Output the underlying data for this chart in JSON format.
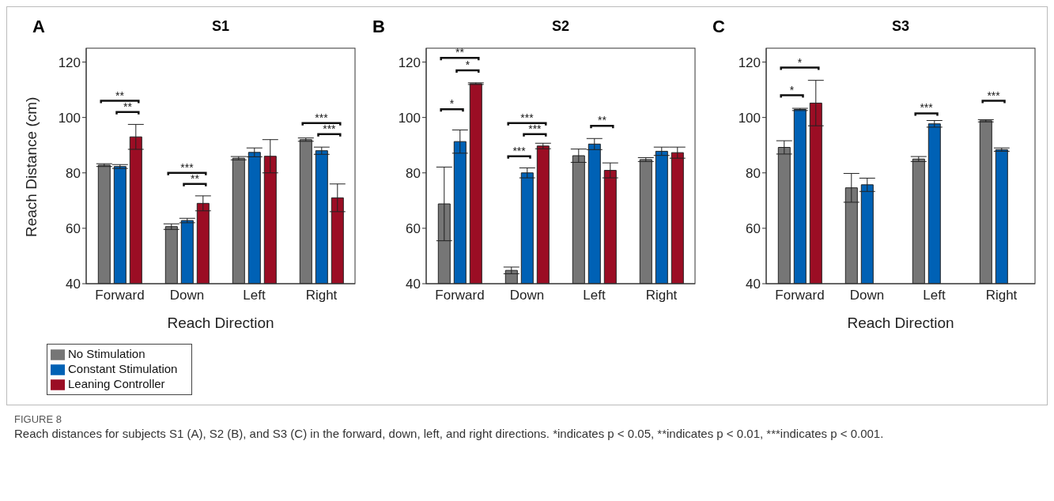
{
  "chart_data": [
    {
      "type": "bar",
      "title": "S1",
      "xlabel": "Reach Direction",
      "ylabel": "Reach Distance (cm)",
      "categories": [
        "Forward",
        "Down",
        "Left",
        "Right"
      ],
      "series": [
        {
          "name": "No Stimulation",
          "color": "#767676",
          "values": [
            82.8,
            60.6,
            85.3,
            92
          ],
          "errors": [
            0.5,
            1,
            0.6,
            0.6
          ]
        },
        {
          "name": "Constant Stimulation",
          "color": "#0061b5",
          "values": [
            82.3,
            62.8,
            87.4,
            88
          ],
          "errors": [
            0.7,
            0.8,
            1.6,
            1.3
          ]
        },
        {
          "name": "Leaning Controller",
          "color": "#9b0d24",
          "values": [
            93,
            69,
            86,
            71
          ],
          "errors": [
            4.5,
            2.7,
            6,
            5
          ]
        }
      ],
      "ylim": [
        40,
        125
      ],
      "yticks": [
        40,
        60,
        80,
        100,
        120
      ],
      "legend": "bottom left",
      "annotations": [
        "A",
        "**",
        "**",
        "***",
        "**",
        "***",
        "***",
        "FIGURE 8",
        "Reach distances for subjects S1 (A), S2 (B), and S3 (C) in the forward, down, left, and right directions. *indicates p < 0.05, **indicates p < 0.01, ***indicates p < 0.001."
      ]
    },
    {
      "type": "bar",
      "title": "S2",
      "categories": [
        "Forward",
        "Down",
        "Left",
        "Right"
      ],
      "series": [
        {
          "color": "#767676",
          "values": [
            68.8,
            44.8,
            86.2,
            84.8
          ],
          "errors": [
            13.3,
            1.2,
            2.4,
            0.7
          ]
        },
        {
          "color": "#0061b5",
          "values": [
            91.3,
            80,
            90.4,
            87.8
          ],
          "errors": [
            4.2,
            1.8,
            2,
            1.5
          ]
        },
        {
          "color": "#9b0d24",
          "values": [
            112.2,
            89.7,
            80.9,
            87.3
          ],
          "errors": [
            0.3,
            1,
            2.7,
            2
          ]
        }
      ],
      "ylim": [
        40,
        125
      ],
      "yticks": [
        40,
        60,
        80,
        100,
        120
      ],
      "annotations": [
        "B",
        "**",
        "*",
        "*",
        "***",
        "***",
        "***",
        "**"
      ]
    },
    {
      "type": "bar",
      "title": "S3",
      "xlabel": "Reach Direction",
      "categories": [
        "Forward",
        "Down",
        "Left",
        "Right"
      ],
      "series": [
        {
          "color": "#767676",
          "values": [
            89.2,
            74.6,
            85,
            98.8
          ],
          "errors": [
            2.4,
            5.2,
            0.9,
            0.4
          ]
        },
        {
          "color": "#0061b5",
          "values": [
            102.9,
            75.7,
            97.7,
            88.4
          ],
          "errors": [
            0.4,
            2.4,
            1.2,
            0.6
          ]
        },
        {
          "color": "#9b0d24",
          "values": [
            105.2,
            null,
            null,
            null
          ],
          "errors": [
            8.2,
            null,
            null,
            null
          ]
        }
      ],
      "ylim": [
        40,
        125
      ],
      "yticks": [
        40,
        60,
        80,
        100,
        120
      ],
      "annotations": [
        "C",
        "*",
        "*",
        "***",
        "***"
      ]
    }
  ]
}
